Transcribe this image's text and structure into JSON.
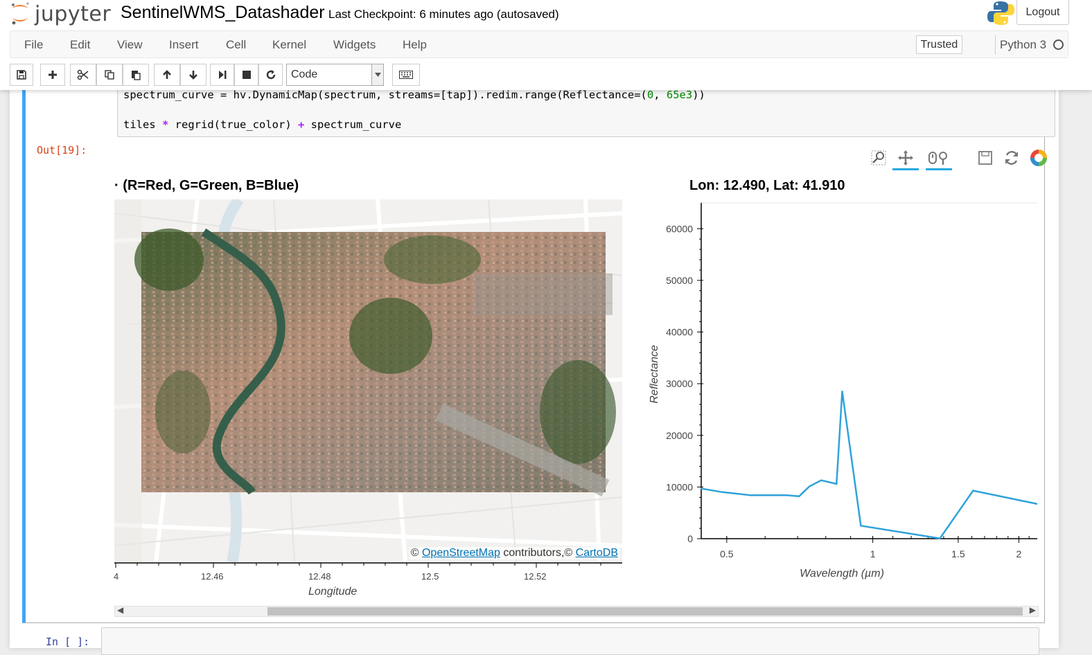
{
  "header": {
    "logo_text": "jupyter",
    "notebook_name": "SentinelWMS_Datashader",
    "checkpoint": "Last Checkpoint: 6 minutes ago (autosaved)",
    "logout_label": "Logout"
  },
  "menu": [
    "File",
    "Edit",
    "View",
    "Insert",
    "Cell",
    "Kernel",
    "Widgets",
    "Help"
  ],
  "status": {
    "trusted": "Trusted",
    "kernel": "Python 3"
  },
  "toolbar": {
    "cell_type": "Code"
  },
  "cell": {
    "code_line_1": {
      "a": "spectrum_curve = hv.DynamicMap(spectrum, streams=[tap]).redim.range(Reflectance=(",
      "n1": "0",
      "b": ", ",
      "n2": "65e3",
      "c": "))"
    },
    "code_line_2": {
      "a": "tiles ",
      "op1": "*",
      "b": " regrid(true_color) ",
      "op2": "+",
      "c": " spectrum_curve"
    },
    "out_prompt": "Out[19]:"
  },
  "map_plot": {
    "title": "· (R=Red, G=Green, B=Blue)",
    "xlabel": "Longitude",
    "x_ticks": [
      "4",
      "12.46",
      "12.48",
      "12.5",
      "12.52"
    ],
    "attribution": {
      "prefix": "© ",
      "osm": "OpenStreetMap",
      "middle": " contributors,© ",
      "carto": "CartoDB"
    }
  },
  "chart_data": {
    "type": "line",
    "title": "Lon: 12.490, Lat: 41.910",
    "xlabel": "Wavelength (µm)",
    "ylabel": "Reflectance",
    "xscale": "log",
    "xlim": [
      0.443,
      2.19
    ],
    "ylim": [
      0,
      65000
    ],
    "x_ticks": [
      0.5,
      1,
      1.5,
      2
    ],
    "x_tick_labels": [
      "0.5",
      "1",
      "1.5",
      "2"
    ],
    "y_ticks": [
      0,
      10000,
      20000,
      30000,
      40000,
      50000,
      60000
    ],
    "y_tick_labels": [
      "0",
      "10000",
      "20000",
      "30000",
      "40000",
      "50000",
      "60000"
    ],
    "series": [
      {
        "color": "#30a2da",
        "x": [
          0.443,
          0.49,
          0.56,
          0.665,
          0.705,
          0.74,
          0.783,
          0.842,
          0.865,
          0.945,
          1.375,
          1.61,
          2.19
        ],
        "y": [
          9700,
          9000,
          8400,
          8400,
          8200,
          10100,
          11300,
          10600,
          28500,
          2500,
          50,
          9300,
          6700
        ]
      }
    ]
  },
  "next_cell": {
    "prompt": "In [ ]:"
  }
}
